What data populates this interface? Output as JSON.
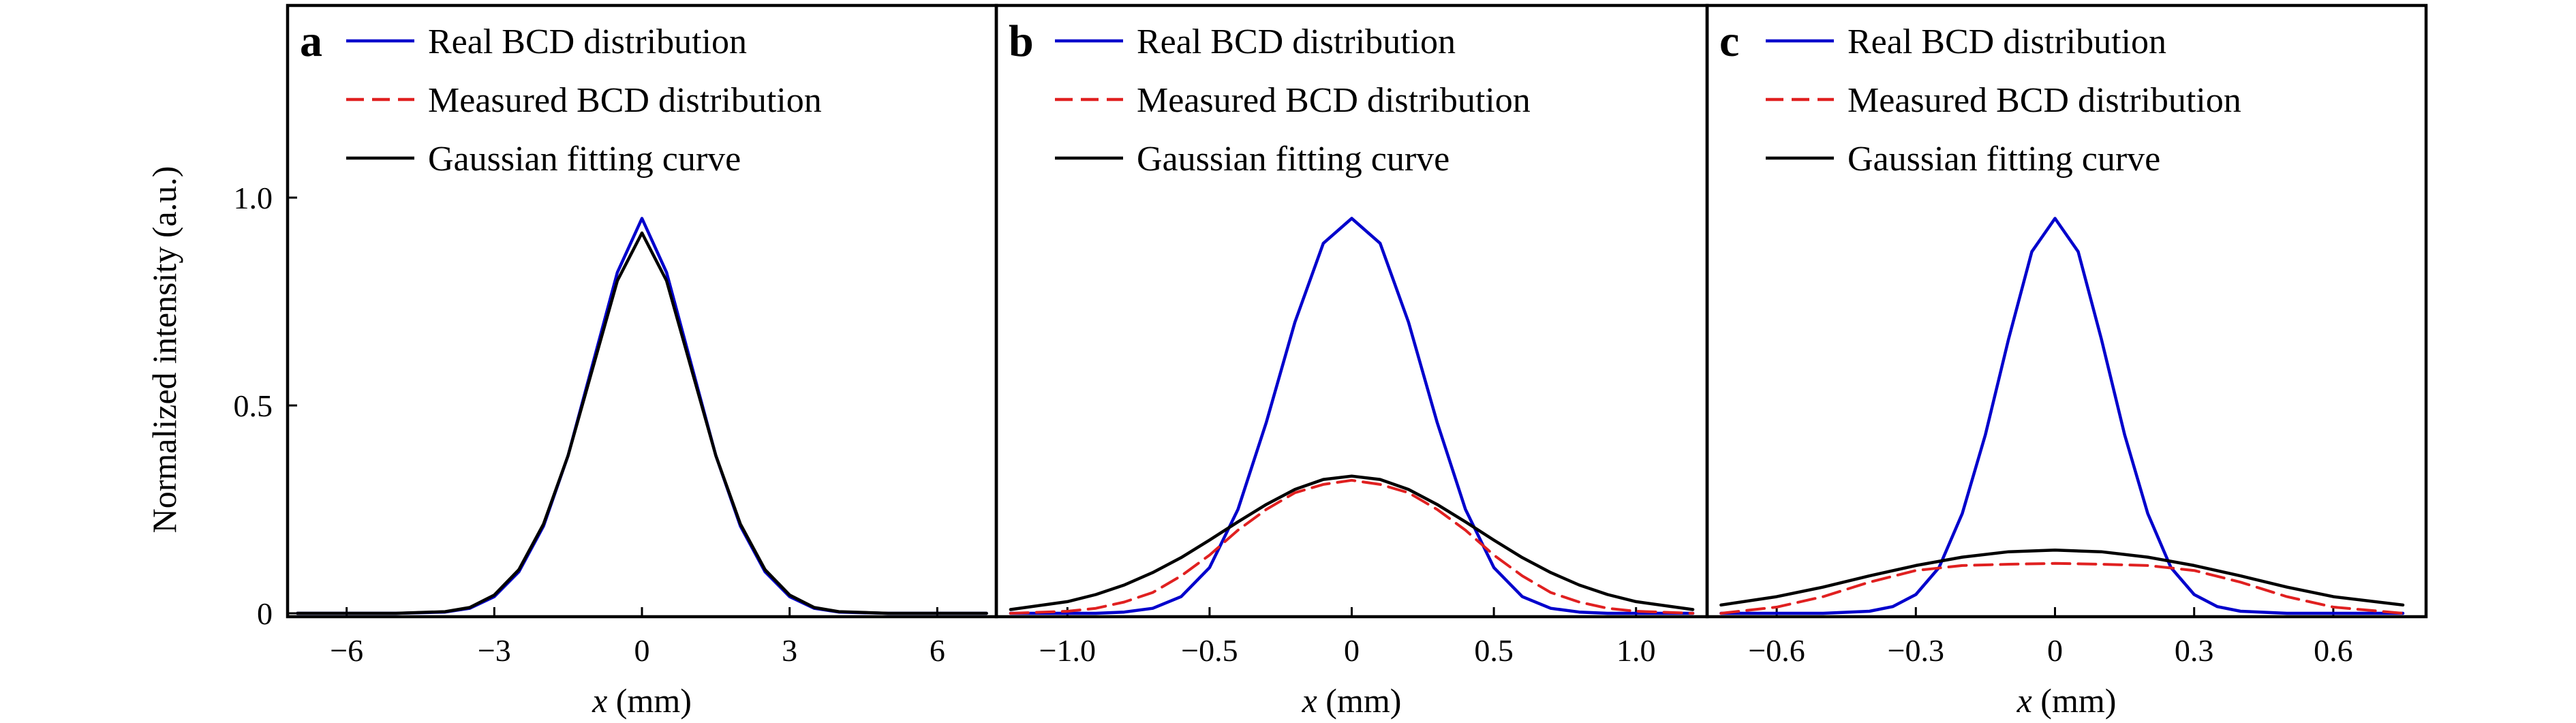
{
  "figure": {
    "ylabel": "Normalized intensity (a.u.)",
    "legend_entries": [
      "Real BCD distribution",
      "Measured BCD distribution",
      "Gaussian fitting curve"
    ],
    "colors": {
      "real": "#0000cc",
      "measured": "#e02020",
      "fit": "#000000"
    }
  },
  "chart_data": [
    {
      "type": "line",
      "panel": "a",
      "xlabel_var": "x",
      "xlabel_unit": " (mm)",
      "ylabel": "Normalized intensity (a.u.)",
      "xlim": [
        -7.2,
        7.2
      ],
      "ylim": [
        0,
        1.5
      ],
      "xticks": [
        -6,
        -3,
        0,
        3,
        6
      ],
      "xtick_labels": [
        "−6",
        "−3",
        "0",
        "3",
        "6"
      ],
      "yticks": [
        0,
        0.5,
        1.0
      ],
      "ytick_labels": [
        "0",
        "0.5",
        "1.0"
      ],
      "legend": "top-left",
      "series": [
        {
          "name": "Real BCD distribution",
          "style": "solid",
          "color": "#0000cc",
          "x": [
            -7,
            -5,
            -4,
            -3.5,
            -3,
            -2.5,
            -2,
            -1.5,
            -1,
            -0.5,
            0,
            0.5,
            1,
            1.5,
            2,
            2.5,
            3,
            3.5,
            4,
            5,
            7
          ],
          "y": [
            0,
            0,
            0.003,
            0.012,
            0.04,
            0.1,
            0.21,
            0.38,
            0.6,
            0.82,
            0.95,
            0.82,
            0.6,
            0.38,
            0.21,
            0.1,
            0.04,
            0.012,
            0.003,
            0,
            0
          ]
        },
        {
          "name": "Measured BCD distribution",
          "style": "dashed",
          "color": "#e02020",
          "x": [
            -7,
            -5,
            -4,
            -3.5,
            -3,
            -2.5,
            -2,
            -1.5,
            -1,
            -0.5,
            0,
            0.5,
            1,
            1.5,
            2,
            2.5,
            3,
            3.5,
            4,
            5,
            7
          ],
          "y": [
            0,
            0,
            0.004,
            0.014,
            0.044,
            0.105,
            0.215,
            0.38,
            0.59,
            0.8,
            0.915,
            0.8,
            0.59,
            0.38,
            0.215,
            0.105,
            0.044,
            0.014,
            0.004,
            0,
            0
          ]
        },
        {
          "name": "Gaussian fitting curve",
          "style": "solid",
          "color": "#000000",
          "x": [
            -7,
            -5,
            -4,
            -3.5,
            -3,
            -2.5,
            -2,
            -1.5,
            -1,
            -0.5,
            0,
            0.5,
            1,
            1.5,
            2,
            2.5,
            3,
            3.5,
            4,
            5,
            7
          ],
          "y": [
            0,
            0,
            0.004,
            0.014,
            0.044,
            0.105,
            0.215,
            0.38,
            0.59,
            0.8,
            0.915,
            0.8,
            0.59,
            0.38,
            0.215,
            0.105,
            0.044,
            0.014,
            0.004,
            0,
            0
          ]
        }
      ]
    },
    {
      "type": "line",
      "panel": "b",
      "xlabel_var": "x",
      "xlabel_unit": " (mm)",
      "xlim": [
        -1.25,
        1.25
      ],
      "ylim": [
        0,
        1.5
      ],
      "xticks": [
        -1.0,
        -0.5,
        0,
        0.5,
        1.0
      ],
      "xtick_labels": [
        "−1.0",
        "−0.5",
        "0",
        "0.5",
        "1.0"
      ],
      "legend": "top-left",
      "series": [
        {
          "name": "Real BCD distribution",
          "style": "solid",
          "color": "#0000cc",
          "x": [
            -1.2,
            -0.9,
            -0.8,
            -0.7,
            -0.6,
            -0.5,
            -0.4,
            -0.3,
            -0.2,
            -0.1,
            0,
            0.1,
            0.2,
            0.3,
            0.4,
            0.5,
            0.6,
            0.7,
            0.8,
            0.9,
            1.2
          ],
          "y": [
            0,
            0,
            0.003,
            0.012,
            0.04,
            0.11,
            0.25,
            0.46,
            0.7,
            0.89,
            0.95,
            0.89,
            0.7,
            0.46,
            0.25,
            0.11,
            0.04,
            0.012,
            0.003,
            0,
            0
          ]
        },
        {
          "name": "Measured BCD distribution",
          "style": "dashed",
          "color": "#e02020",
          "x": [
            -1.2,
            -1.0,
            -0.9,
            -0.8,
            -0.7,
            -0.6,
            -0.5,
            -0.4,
            -0.3,
            -0.2,
            -0.1,
            0,
            0.1,
            0.2,
            0.3,
            0.4,
            0.5,
            0.6,
            0.7,
            0.8,
            0.9,
            1.0,
            1.2
          ],
          "y": [
            0,
            0.005,
            0.012,
            0.027,
            0.05,
            0.09,
            0.14,
            0.2,
            0.25,
            0.29,
            0.31,
            0.32,
            0.31,
            0.29,
            0.25,
            0.2,
            0.14,
            0.09,
            0.05,
            0.027,
            0.012,
            0.005,
            0
          ]
        },
        {
          "name": "Gaussian fitting curve",
          "style": "solid",
          "color": "#000000",
          "x": [
            -1.2,
            -1.0,
            -0.9,
            -0.8,
            -0.7,
            -0.6,
            -0.5,
            -0.4,
            -0.3,
            -0.2,
            -0.1,
            0,
            0.1,
            0.2,
            0.3,
            0.4,
            0.5,
            0.6,
            0.7,
            0.8,
            0.9,
            1.0,
            1.2
          ],
          "y": [
            0.009,
            0.028,
            0.045,
            0.068,
            0.098,
            0.134,
            0.176,
            0.22,
            0.262,
            0.298,
            0.322,
            0.33,
            0.322,
            0.298,
            0.262,
            0.22,
            0.176,
            0.134,
            0.098,
            0.068,
            0.045,
            0.028,
            0.009
          ]
        }
      ]
    },
    {
      "type": "line",
      "panel": "c",
      "xlabel_var": "x",
      "xlabel_unit": " (mm)",
      "xlim": [
        -0.75,
        0.8
      ],
      "ylim": [
        0,
        1.5
      ],
      "xticks": [
        -0.6,
        -0.3,
        0,
        0.3,
        0.6
      ],
      "xtick_labels": [
        "−0.6",
        "−0.3",
        "0",
        "0.3",
        "0.6"
      ],
      "legend": "top-left",
      "series": [
        {
          "name": "Real BCD distribution",
          "style": "solid",
          "color": "#0000cc",
          "x": [
            -0.72,
            -0.5,
            -0.4,
            -0.35,
            -0.3,
            -0.25,
            -0.2,
            -0.15,
            -0.1,
            -0.05,
            0,
            0.05,
            0.1,
            0.15,
            0.2,
            0.25,
            0.3,
            0.35,
            0.4,
            0.5,
            0.75
          ],
          "y": [
            0,
            0,
            0.005,
            0.016,
            0.045,
            0.11,
            0.24,
            0.43,
            0.66,
            0.87,
            0.95,
            0.87,
            0.66,
            0.43,
            0.24,
            0.11,
            0.045,
            0.016,
            0.005,
            0,
            0
          ]
        },
        {
          "name": "Measured BCD distribution",
          "style": "dashed",
          "color": "#e02020",
          "x": [
            -0.72,
            -0.6,
            -0.5,
            -0.4,
            -0.3,
            -0.2,
            -0.1,
            0,
            0.1,
            0.2,
            0.3,
            0.4,
            0.5,
            0.6,
            0.75
          ],
          "y": [
            0,
            0.015,
            0.04,
            0.075,
            0.103,
            0.115,
            0.118,
            0.12,
            0.118,
            0.115,
            0.103,
            0.075,
            0.04,
            0.015,
            0
          ]
        },
        {
          "name": "Gaussian fitting curve",
          "style": "solid",
          "color": "#000000",
          "x": [
            -0.72,
            -0.6,
            -0.5,
            -0.4,
            -0.3,
            -0.2,
            -0.1,
            0,
            0.1,
            0.2,
            0.3,
            0.4,
            0.5,
            0.6,
            0.75
          ],
          "y": [
            0.02,
            0.04,
            0.063,
            0.09,
            0.115,
            0.135,
            0.148,
            0.152,
            0.148,
            0.135,
            0.115,
            0.09,
            0.063,
            0.04,
            0.02
          ]
        }
      ]
    }
  ]
}
